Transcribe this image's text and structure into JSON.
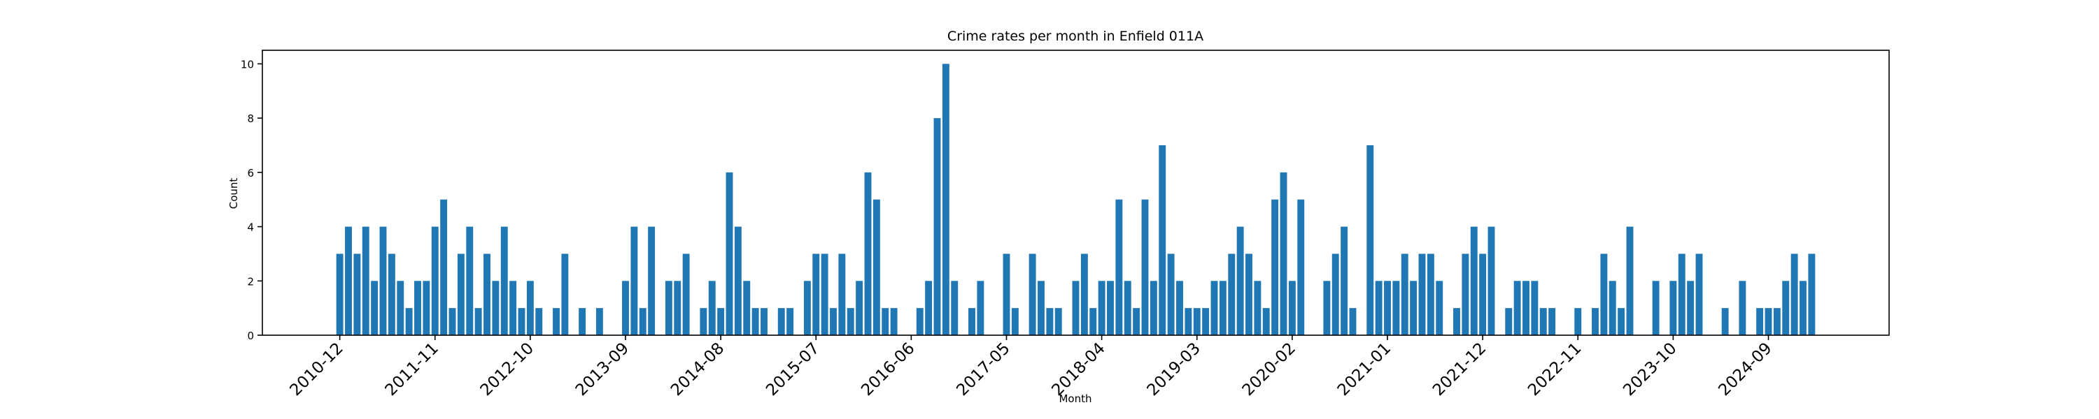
{
  "chart_data": {
    "type": "bar",
    "title": "Crime rates per month in Enfield 011A",
    "x_label": "Month",
    "y_label": "Count",
    "color": "#1f77b4",
    "categories": [
      "2010-12",
      null,
      null,
      null,
      null,
      null,
      null,
      null,
      null,
      null,
      null,
      "2011-11",
      null,
      null,
      null,
      null,
      null,
      null,
      null,
      null,
      null,
      null,
      "2012-10",
      null,
      null,
      null,
      null,
      null,
      null,
      null,
      null,
      null,
      null,
      "2013-09",
      null,
      null,
      null,
      null,
      null,
      null,
      null,
      null,
      null,
      null,
      "2014-08",
      null,
      null,
      null,
      null,
      null,
      null,
      null,
      null,
      null,
      null,
      "2015-07",
      null,
      null,
      null,
      null,
      null,
      null,
      null,
      null,
      null,
      null,
      "2016-06",
      null,
      null,
      null,
      null,
      null,
      null,
      null,
      null,
      null,
      null,
      "2017-05",
      null,
      null,
      null,
      null,
      null,
      null,
      null,
      null,
      null,
      null,
      "2018-04",
      null,
      null,
      null,
      null,
      null,
      null,
      null,
      null,
      null,
      null,
      "2019-03",
      null,
      null,
      null,
      null,
      null,
      null,
      null,
      null,
      null,
      null,
      "2020-02",
      null,
      null,
      null,
      null,
      null,
      null,
      null,
      null,
      null,
      null,
      "2021-01",
      null,
      null,
      null,
      null,
      null,
      null,
      null,
      null,
      null,
      null,
      "2021-12",
      null,
      null,
      null,
      null,
      null,
      null,
      null,
      null,
      null,
      null,
      "2022-11",
      null,
      null,
      null,
      null,
      null,
      null,
      null,
      null,
      null,
      null,
      "2023-10",
      null,
      null,
      null,
      null,
      null,
      null,
      null,
      null,
      null,
      null,
      "2024-09",
      null,
      null,
      null,
      null,
      null
    ],
    "values": [
      3,
      4,
      3,
      4,
      2,
      4,
      3,
      2,
      1,
      2,
      2,
      4,
      5,
      1,
      3,
      4,
      1,
      3,
      2,
      4,
      2,
      1,
      2,
      1,
      0,
      1,
      3,
      0,
      1,
      0,
      1,
      0,
      0,
      2,
      4,
      1,
      4,
      0,
      2,
      2,
      3,
      0,
      1,
      2,
      1,
      6,
      4,
      2,
      1,
      1,
      0,
      1,
      1,
      0,
      2,
      3,
      3,
      1,
      3,
      1,
      2,
      6,
      5,
      1,
      1,
      0,
      0,
      1,
      2,
      8,
      10,
      2,
      0,
      1,
      2,
      0,
      0,
      3,
      1,
      0,
      3,
      2,
      1,
      1,
      0,
      2,
      3,
      1,
      2,
      2,
      5,
      2,
      1,
      5,
      2,
      7,
      3,
      2,
      1,
      1,
      1,
      2,
      2,
      3,
      4,
      3,
      2,
      1,
      5,
      6,
      2,
      5,
      0,
      0,
      2,
      3,
      4,
      1,
      0,
      7,
      2,
      2,
      2,
      3,
      2,
      3,
      3,
      2,
      0,
      1,
      3,
      4,
      3,
      4,
      0,
      1,
      2,
      2,
      2,
      1,
      1,
      0,
      0,
      1,
      0,
      1,
      3,
      2,
      1,
      4,
      0,
      0,
      2,
      0,
      2,
      3,
      2,
      3,
      0,
      0,
      1,
      0,
      2,
      0,
      1,
      1,
      1,
      2,
      3,
      2,
      3
    ],
    "ylim": [
      0,
      10.5
    ],
    "yticks": [
      0,
      2,
      4,
      6,
      8,
      10
    ]
  }
}
